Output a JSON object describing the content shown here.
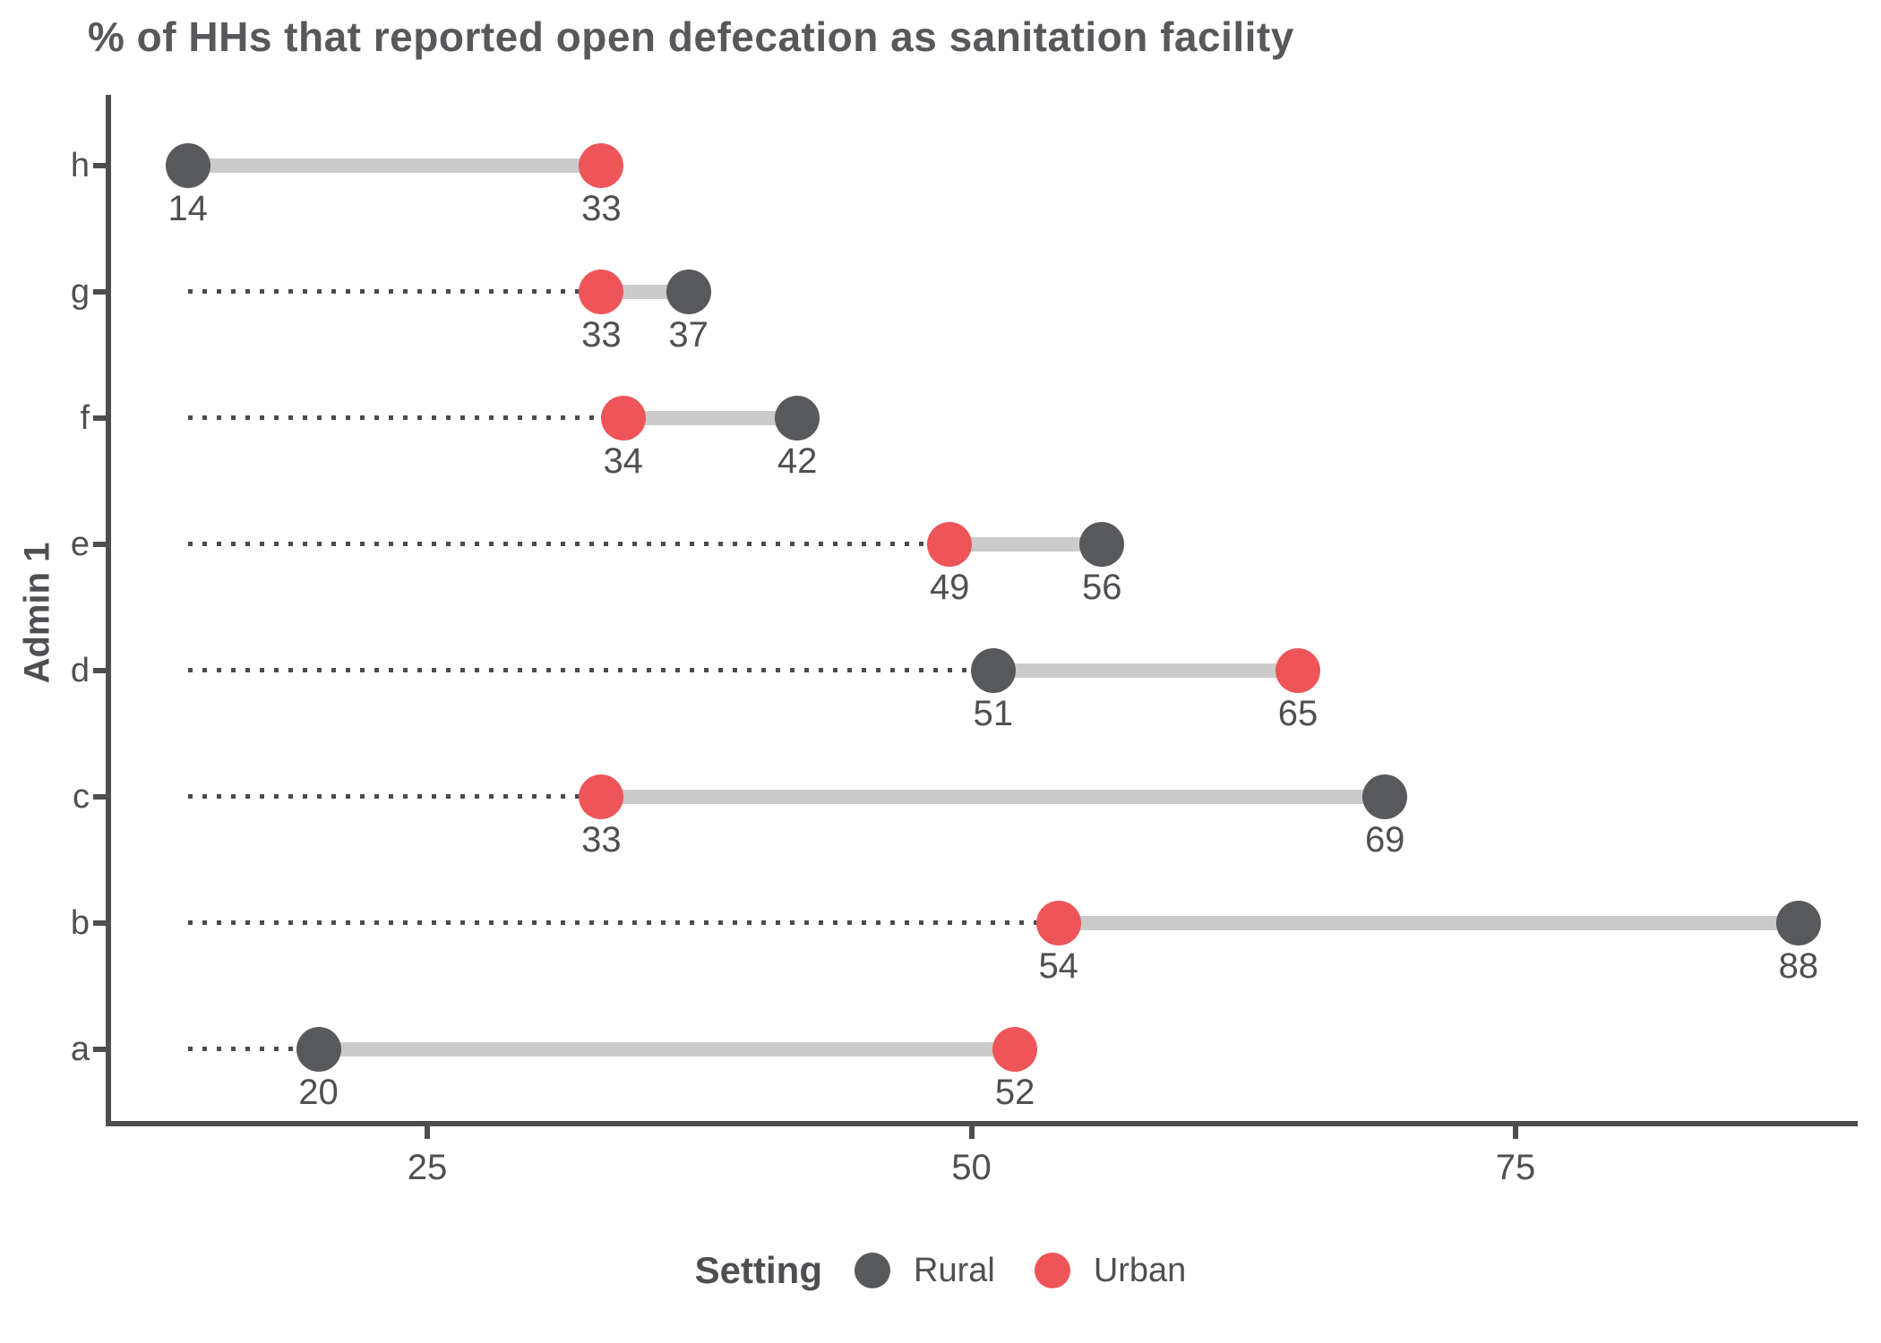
{
  "title": "% of HHs that reported open defecation as sanitation facility",
  "y_axis_title": "Admin 1",
  "legend": {
    "title": "Setting",
    "items": [
      {
        "label": "Rural",
        "color": "#58595c"
      },
      {
        "label": "Urban",
        "color": "#ee5558"
      }
    ]
  },
  "x_axis": {
    "tick_labels": [
      "25",
      "50",
      "75"
    ],
    "tick_values": [
      25,
      50,
      75
    ]
  },
  "chart_data": {
    "type": "dumbbell",
    "orientation": "horizontal",
    "title": "% of HHs that reported open defecation as sanitation facility",
    "xlabel": "",
    "ylabel": "Admin 1",
    "categories": [
      "h",
      "g",
      "f",
      "e",
      "d",
      "c",
      "b",
      "a"
    ],
    "series": [
      {
        "name": "Rural",
        "color": "#58595c",
        "values": [
          14,
          37,
          42,
          56,
          51,
          69,
          88,
          20
        ]
      },
      {
        "name": "Urban",
        "color": "#ee5558",
        "values": [
          33,
          33,
          34,
          49,
          65,
          33,
          54,
          52
        ]
      }
    ],
    "x_ticks": [
      25,
      50,
      75
    ],
    "x_domain": [
      10.4,
      91.5
    ],
    "leader_line_from": 14,
    "connector_color": "#cbcbcb",
    "leader_color": "#4a4b4e",
    "value_labels_shown": true,
    "grid": false,
    "legend_position": "bottom",
    "legend_title": "Setting"
  }
}
